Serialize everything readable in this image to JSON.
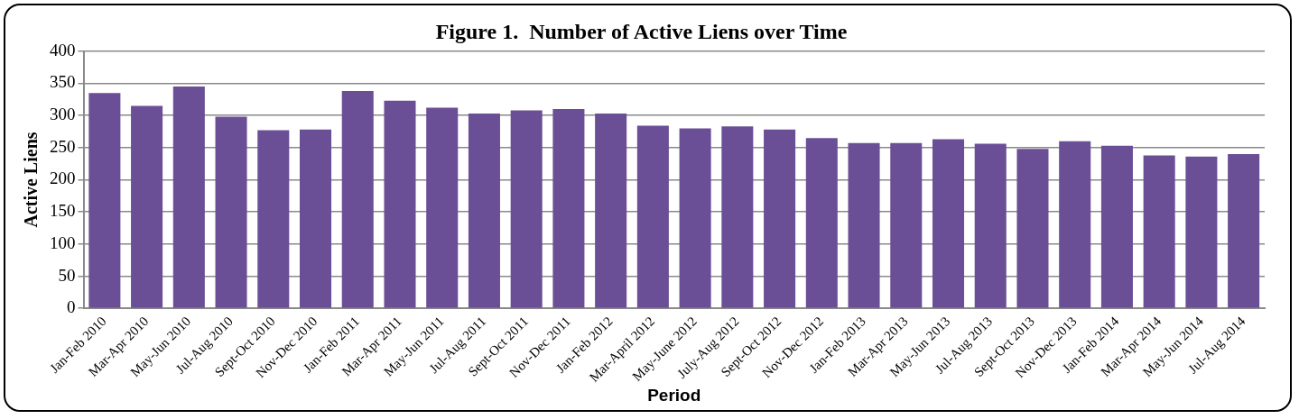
{
  "chart_data": {
    "type": "bar",
    "title": "Figure 1.  Number of Active Liens over Time",
    "xlabel": "Period",
    "ylabel": "Active Liens",
    "categories": [
      "Jan-Feb 2010",
      "Mar-Apr 2010",
      "May-Jun 2010",
      "Jul-Aug 2010",
      "Sept-Oct 2010",
      "Nov-Dec 2010",
      "Jan-Feb 2011",
      "Mar-Apr 2011",
      "May-Jun 2011",
      "Jul-Aug 2011",
      "Sept-Oct 2011",
      "Nov-Dec 2011",
      "Jan-Feb 2012",
      "Mar-April 2012",
      "May-June 2012",
      "July-Aug 2012",
      "Sept-Oct 2012",
      "Nov-Dec 2012",
      "Jan-Feb 2013",
      "Mar-Apr 2013",
      "May-Jun 2013",
      "Jul-Aug 2013",
      "Sept-Oct 2013",
      "Nov-Dec 2013",
      "Jan-Feb 2014",
      "Mar-Apr 2014",
      "May-Jun 2014",
      "Jul-Aug 2014"
    ],
    "values": [
      335,
      315,
      345,
      298,
      277,
      278,
      338,
      323,
      312,
      303,
      308,
      310,
      303,
      284,
      280,
      283,
      278,
      265,
      257,
      257,
      263,
      256,
      248,
      260,
      253,
      238,
      236,
      240
    ],
    "color": "#6b4f96",
    "ylim": [
      0,
      400
    ],
    "yticks": [
      0,
      50,
      100,
      150,
      200,
      250,
      300,
      350,
      400
    ],
    "grid": "y"
  }
}
